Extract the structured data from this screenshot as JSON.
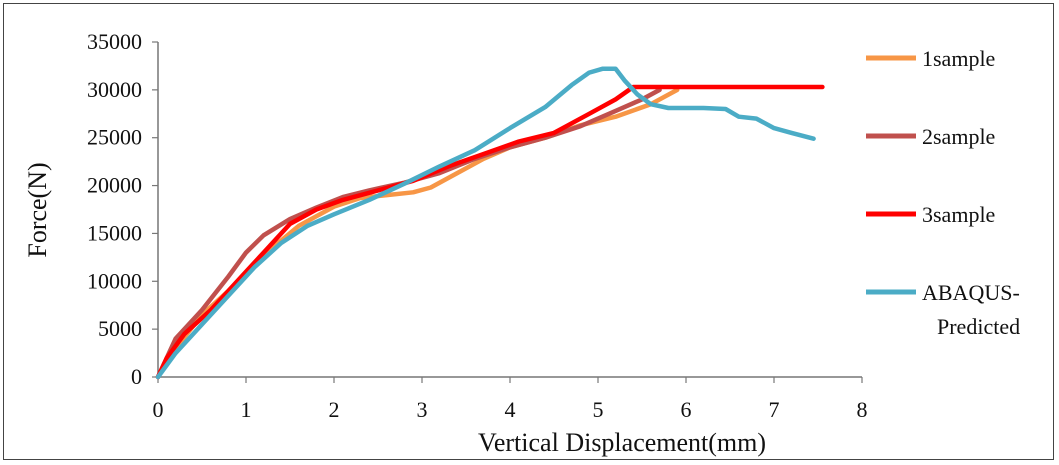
{
  "chart_data": {
    "type": "line",
    "title": "",
    "xlabel": "Vertical Displacement(mm)",
    "ylabel": "Force(N)",
    "xlim": [
      0,
      8
    ],
    "ylim": [
      0,
      35000
    ],
    "xticks": [
      0,
      1,
      2,
      3,
      4,
      5,
      6,
      7,
      8
    ],
    "yticks": [
      0,
      5000,
      10000,
      15000,
      20000,
      25000,
      30000,
      35000
    ],
    "grid": false,
    "legend_position": "right",
    "series": [
      {
        "name": "1sample",
        "color": "#f79646",
        "x": [
          0,
          0.2,
          0.5,
          0.8,
          1.0,
          1.3,
          1.6,
          2.0,
          2.3,
          2.6,
          2.9,
          3.1,
          3.4,
          3.7,
          4.0,
          4.4,
          4.8,
          5.2,
          5.6,
          5.9
        ],
        "y": [
          0,
          3000,
          6500,
          9000,
          10800,
          13500,
          15800,
          17800,
          18700,
          19000,
          19300,
          19800,
          21300,
          22800,
          24000,
          25000,
          26300,
          27200,
          28500,
          30000
        ]
      },
      {
        "name": "2sample",
        "color": "#c0504d",
        "x": [
          0,
          0.2,
          0.5,
          0.8,
          1.0,
          1.2,
          1.5,
          1.8,
          2.1,
          2.4,
          2.8,
          3.2,
          3.6,
          4.0,
          4.4,
          4.8,
          5.2,
          5.5,
          5.7
        ],
        "y": [
          0,
          4000,
          7000,
          10500,
          13000,
          14800,
          16500,
          17700,
          18800,
          19500,
          20300,
          21300,
          22800,
          24000,
          25000,
          26200,
          27800,
          29000,
          30000
        ]
      },
      {
        "name": "3sample",
        "color": "#ff0000",
        "x": [
          0,
          0.1,
          0.3,
          0.6,
          0.9,
          1.2,
          1.5,
          1.8,
          2.1,
          2.5,
          2.9,
          3.3,
          3.7,
          4.1,
          4.5,
          4.9,
          5.2,
          5.4,
          5.6,
          6.0,
          6.5,
          7.0,
          7.55
        ],
        "y": [
          0,
          2000,
          4500,
          7000,
          10000,
          13000,
          16000,
          17500,
          18500,
          19500,
          20500,
          22000,
          23300,
          24600,
          25500,
          27500,
          29000,
          30300,
          30300,
          30300,
          30300,
          30300,
          30300
        ]
      },
      {
        "name": "ABAQUS-Predicted",
        "color": "#4bacc6",
        "x": [
          0,
          0.2,
          0.5,
          0.8,
          1.1,
          1.4,
          1.7,
          2.0,
          2.4,
          2.8,
          3.2,
          3.6,
          4.0,
          4.4,
          4.7,
          4.9,
          5.05,
          5.2,
          5.3,
          5.45,
          5.6,
          5.8,
          6.0,
          6.2,
          6.45,
          6.6,
          6.8,
          7.0,
          7.2,
          7.45
        ],
        "y": [
          0,
          2500,
          5500,
          8500,
          11500,
          14000,
          15800,
          17000,
          18500,
          20200,
          22000,
          23700,
          26000,
          28200,
          30500,
          31800,
          32200,
          32200,
          31000,
          29500,
          28500,
          28100,
          28100,
          28100,
          28000,
          27200,
          27000,
          26000,
          25500,
          24900
        ]
      }
    ]
  }
}
